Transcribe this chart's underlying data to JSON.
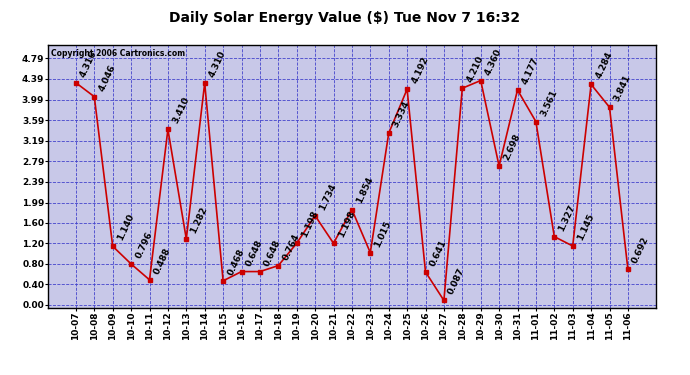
{
  "title": "Daily Solar Energy Value ($) Tue Nov 7 16:32",
  "copyright": "Copyright 2006 Cartronics.com",
  "labels": [
    "10-07",
    "10-08",
    "10-09",
    "10-10",
    "10-11",
    "10-12",
    "10-13",
    "10-14",
    "10-15",
    "10-16",
    "10-17",
    "10-18",
    "10-19",
    "10-20",
    "10-21",
    "10-22",
    "10-23",
    "10-24",
    "10-25",
    "10-26",
    "10-27",
    "10-28",
    "10-29",
    "10-30",
    "10-31",
    "11-01",
    "11-02",
    "11-03",
    "11-04",
    "11-05",
    "11-06"
  ],
  "values": [
    4.316,
    4.046,
    1.14,
    0.796,
    0.488,
    3.41,
    1.282,
    4.31,
    0.468,
    0.648,
    0.648,
    0.764,
    1.198,
    1.734,
    1.198,
    1.854,
    1.015,
    3.334,
    4.192,
    0.641,
    0.087,
    4.21,
    4.36,
    2.698,
    4.177,
    3.561,
    1.327,
    1.145,
    4.284,
    3.841,
    0.692
  ],
  "yticks": [
    0.0,
    0.4,
    0.8,
    1.2,
    1.6,
    1.99,
    2.39,
    2.79,
    3.19,
    3.59,
    3.99,
    4.39,
    4.79
  ],
  "line_color": "#cc0000",
  "marker_color": "#cc0000",
  "plot_bg_color": "#c8c8e8",
  "fig_bg_color": "#ffffff",
  "grid_color": "#4444cc",
  "text_color": "#000000",
  "label_font_size": 6.5,
  "annotation_font_size": 6.5,
  "title_font_size": 10,
  "ylim_min": -0.05,
  "ylim_max": 5.05
}
